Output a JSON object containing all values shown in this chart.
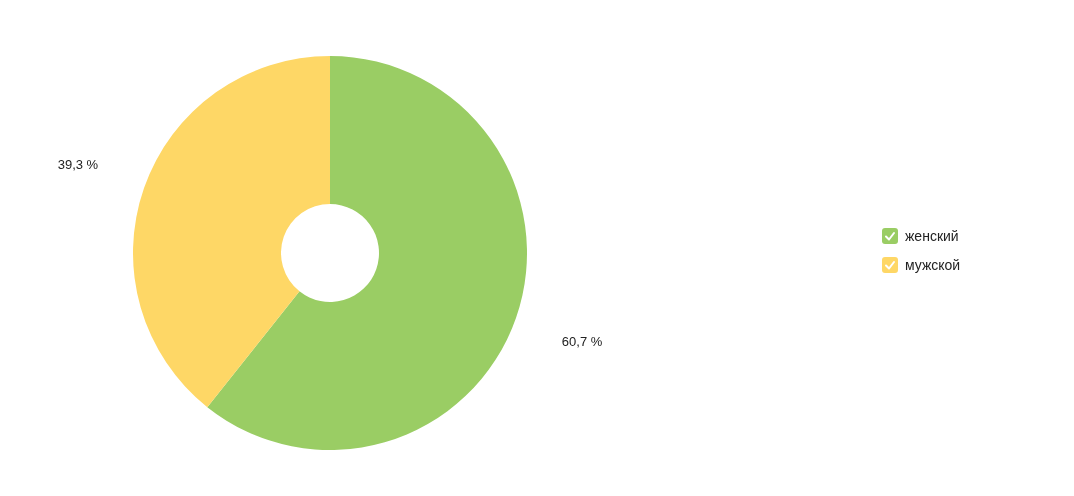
{
  "chart_data": {
    "type": "donut",
    "categories": [
      "женский",
      "мужской"
    ],
    "values": [
      60.7,
      39.3
    ],
    "colors": [
      "#9acd64",
      "#fed766"
    ],
    "value_labels": [
      "60,7 %",
      "39,3 %"
    ],
    "legend": "right"
  }
}
